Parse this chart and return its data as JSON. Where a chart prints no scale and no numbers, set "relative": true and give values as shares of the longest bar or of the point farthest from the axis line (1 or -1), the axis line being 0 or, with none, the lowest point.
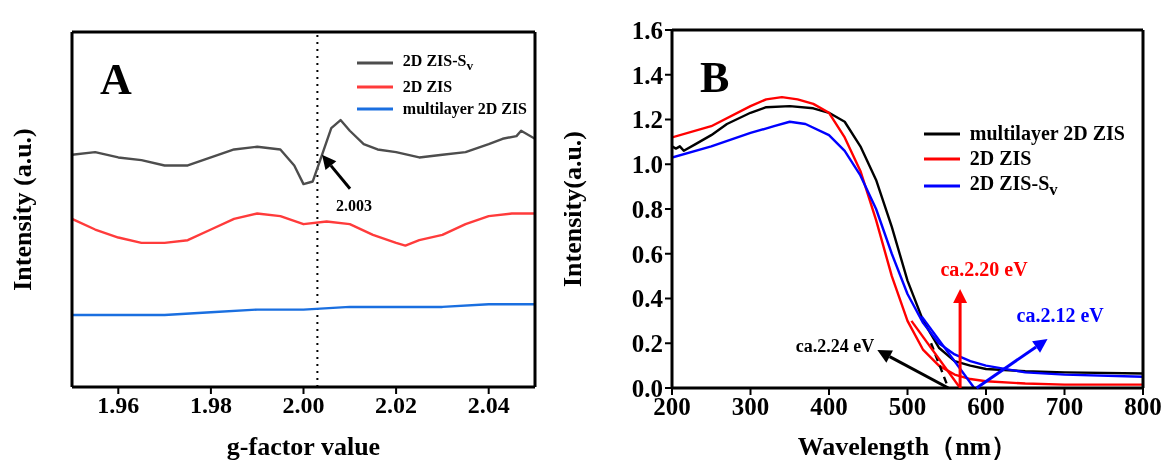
{
  "chart_data": [
    {
      "type": "line",
      "relative": true,
      "xlabel": "g-factor value",
      "ylabel": "Intensity (a.u.)",
      "xlim": [
        1.95,
        2.05
      ],
      "xticks": [
        1.96,
        1.98,
        {
          "value": 2,
          "label": "2.00"
        },
        2.02,
        2.04
      ],
      "legend": "top right",
      "marker": "none",
      "series": [
        {
          "name": "2D ZIS-S$_{v}$",
          "color": "#4d4d4d",
          "x": [
            1.95,
            1.955,
            1.96,
            1.965,
            1.97,
            1.975,
            1.98,
            1.985,
            1.99,
            1.995,
            1.998,
            2.0,
            2.002,
            2.004,
            2.006,
            2.008,
            2.01,
            2.013,
            2.016,
            2.02,
            2.025,
            2.03,
            2.035,
            2.04,
            2.043,
            2.046,
            2.047,
            2.05
          ],
          "values": [
            0.87,
            0.88,
            0.86,
            0.85,
            0.83,
            0.83,
            0.86,
            0.89,
            0.9,
            0.89,
            0.83,
            0.76,
            0.77,
            0.87,
            0.97,
            1,
            0.96,
            0.91,
            0.89,
            0.88,
            0.86,
            0.87,
            0.88,
            0.91,
            0.93,
            0.94,
            0.96,
            0.93
          ]
        },
        {
          "name": "2D ZIS",
          "color": "#ff3b3b",
          "x": [
            1.95,
            1.955,
            1.96,
            1.965,
            1.97,
            1.975,
            1.98,
            1.985,
            1.99,
            1.995,
            2.0,
            2.005,
            2.01,
            2.015,
            2.02,
            2.022,
            2.025,
            2.03,
            2.035,
            2.04,
            2.045,
            2.05
          ],
          "values": [
            0.63,
            0.59,
            0.56,
            0.54,
            0.54,
            0.55,
            0.59,
            0.63,
            0.65,
            0.64,
            0.61,
            0.62,
            0.61,
            0.57,
            0.54,
            0.53,
            0.55,
            0.57,
            0.61,
            0.64,
            0.65,
            0.65
          ]
        },
        {
          "name": "multilayer 2D ZIS",
          "color": "#1a6fe0",
          "x": [
            1.95,
            1.96,
            1.97,
            1.98,
            1.99,
            2.0,
            2.01,
            2.02,
            2.03,
            2.04,
            2.05
          ],
          "values": [
            0.27,
            0.27,
            0.27,
            0.28,
            0.29,
            0.29,
            0.3,
            0.3,
            0.3,
            0.31,
            0.31
          ]
        }
      ],
      "ref_lines": [
        {
          "axis": "x",
          "value": 2.003,
          "line_style": "dotted",
          "color": "#000000"
        }
      ],
      "annotations": [
        "A",
        {
          "text": "2.003",
          "x": 2.004,
          "y": 0.87
        }
      ]
    },
    {
      "type": "line",
      "xlabel": "Wavelength（nm）",
      "ylabel": "Intensity(a.u.)",
      "xlim": [
        200,
        800
      ],
      "xticks": [
        200,
        300,
        400,
        500,
        600,
        700,
        800
      ],
      "ylim": [
        0,
        1.6
      ],
      "yticks": [
        {
          "value": 0,
          "label": "0.0"
        },
        0.2,
        0.4,
        0.6,
        0.8,
        {
          "value": 1,
          "label": "1.0"
        },
        1.2,
        1.4,
        1.6
      ],
      "legend": "top right",
      "marker": "none",
      "series": [
        {
          "name": "multilayer 2D ZIS",
          "color": "#000000",
          "x": [
            200,
            205,
            210,
            215,
            230,
            250,
            270,
            300,
            320,
            350,
            380,
            400,
            420,
            440,
            460,
            480,
            500,
            520,
            540,
            560,
            580,
            600,
            650,
            700,
            800
          ],
          "values": [
            1.08,
            1.07,
            1.08,
            1.06,
            1.09,
            1.13,
            1.18,
            1.23,
            1.255,
            1.26,
            1.25,
            1.23,
            1.19,
            1.08,
            0.93,
            0.72,
            0.48,
            0.3,
            0.18,
            0.12,
            0.1,
            0.085,
            0.075,
            0.07,
            0.065
          ]
        },
        {
          "name": "2D ZIS",
          "color": "#ff0000",
          "x": [
            200,
            250,
            300,
            320,
            340,
            360,
            380,
            400,
            420,
            440,
            460,
            480,
            500,
            520,
            540,
            560,
            580,
            600,
            650,
            700,
            800
          ],
          "values": [
            1.12,
            1.17,
            1.26,
            1.29,
            1.3,
            1.29,
            1.27,
            1.23,
            1.12,
            0.97,
            0.75,
            0.5,
            0.3,
            0.17,
            0.1,
            0.06,
            0.04,
            0.03,
            0.02,
            0.015,
            0.015
          ]
        },
        {
          "name": "2D ZIS-S$_{v}$",
          "color": "#0000ff",
          "x": [
            200,
            250,
            300,
            330,
            350,
            370,
            400,
            420,
            440,
            460,
            480,
            500,
            520,
            540,
            560,
            580,
            600,
            650,
            700,
            800
          ],
          "values": [
            1.03,
            1.08,
            1.14,
            1.17,
            1.19,
            1.18,
            1.13,
            1.06,
            0.95,
            0.8,
            0.6,
            0.42,
            0.29,
            0.2,
            0.15,
            0.12,
            0.1,
            0.07,
            0.06,
            0.05
          ]
        },
        {
          "type": "line",
          "color": "#000000",
          "line_style": "dashed",
          "x": [
            530,
            552
          ],
          "values": [
            0.2,
            0
          ]
        },
        {
          "type": "line",
          "color": "#ff0000",
          "x": [
            505,
            567
          ],
          "values": [
            0.3,
            0
          ]
        },
        {
          "type": "line",
          "color": "#0000ff",
          "x": [
            518,
            585
          ],
          "values": [
            0.32,
            0
          ]
        }
      ],
      "annotations": [
        "B",
        {
          "text": "ca.2.24 eV",
          "x": 552,
          "y": 0
        },
        {
          "text": "ca.2.20 eV",
          "x": 567,
          "y": 0
        },
        {
          "text": "ca.2.12 eV",
          "x": 588,
          "y": 0
        }
      ]
    }
  ]
}
